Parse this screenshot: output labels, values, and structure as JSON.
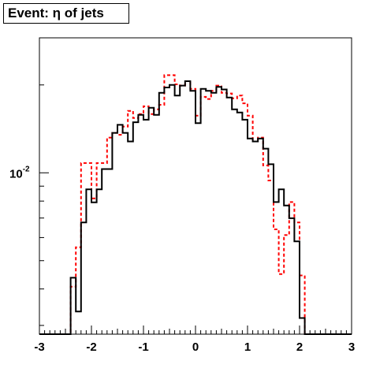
{
  "chart_data": {
    "type": "step",
    "title": "Event: η of jets",
    "xlabel": "",
    "ylabel": "",
    "xlim": [
      -3,
      3
    ],
    "ylog": true,
    "ylim": [
      0.0028,
      0.029
    ],
    "grid": false,
    "x_ticks": [
      -3,
      -2,
      -1,
      0,
      1,
      2,
      3
    ],
    "x_tick_labels": [
      "-3",
      "-2",
      "-1",
      "0",
      "1",
      "2",
      "3"
    ],
    "y_ticks": [
      {
        "value": 0.01,
        "base": "10",
        "exponent": "-2"
      }
    ],
    "bins": {
      "low": -3.0,
      "high": 3.0,
      "count": 60
    },
    "series": [
      {
        "style": "solid",
        "color": "#000000",
        "values": [
          0,
          0,
          0,
          0,
          0,
          0,
          0.00437,
          0.00335,
          0.00676,
          0.00878,
          0.00792,
          0.00878,
          0.0103,
          0.0103,
          0.0137,
          0.0146,
          0.0137,
          0.0128,
          0.0149,
          0.0158,
          0.0152,
          0.0167,
          0.0158,
          0.0188,
          0.0196,
          0.02,
          0.0184,
          0.0199,
          0.0206,
          0.0191,
          0.0148,
          0.0194,
          0.0191,
          0.0188,
          0.0197,
          0.0193,
          0.0181,
          0.0165,
          0.0161,
          0.0152,
          0.0131,
          0.0128,
          0.0131,
          0.0121,
          0.0107,
          0.00794,
          0.00878,
          0.00773,
          0.00699,
          0.00582,
          0.00318,
          0,
          0,
          0,
          0,
          0,
          0,
          0,
          0,
          0
        ]
      },
      {
        "style": "dashed",
        "color": "#ff0000",
        "values": [
          0,
          0,
          0,
          0,
          0,
          0,
          0.00407,
          0.00556,
          0.0108,
          0.0108,
          0.00817,
          0.0108,
          0.0108,
          0.0132,
          0.0137,
          0.0135,
          0.0144,
          0.0163,
          0.0154,
          0.0159,
          0.0169,
          0.0159,
          0.0165,
          0.0171,
          0.0216,
          0.0216,
          0.0201,
          0.0199,
          0.0206,
          0.0194,
          0.0157,
          0.0182,
          0.0179,
          0.0191,
          0.0199,
          0.0188,
          0.0187,
          0.018,
          0.0184,
          0.0173,
          0.0157,
          0.0128,
          0.0132,
          0.0106,
          0.00941,
          0.0064,
          0.0045,
          0.00612,
          0.00794,
          0.00676,
          0.00445,
          0,
          0,
          0,
          0,
          0,
          0,
          0,
          0,
          0
        ]
      }
    ]
  }
}
